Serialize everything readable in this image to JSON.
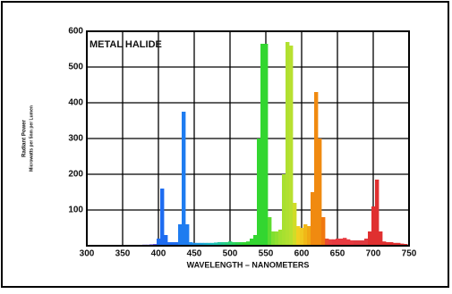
{
  "chart_data": {
    "type": "spectrum",
    "title": "METAL HALIDE",
    "x_label": "WAVELENGTH – NANOMETERS",
    "y_label": [
      "Radiant Power",
      "Microwatts per 5nm per Lumen"
    ],
    "xlim": [
      300,
      750
    ],
    "ylim": [
      0,
      600
    ],
    "xticks": [
      300,
      350,
      400,
      450,
      500,
      550,
      600,
      650,
      700,
      750
    ],
    "yticks": [
      100,
      200,
      300,
      400,
      500,
      600
    ],
    "grid": true,
    "x": [
      380,
      385,
      390,
      395,
      400,
      405,
      410,
      415,
      420,
      425,
      430,
      435,
      440,
      445,
      450,
      455,
      460,
      465,
      470,
      475,
      480,
      485,
      490,
      495,
      500,
      505,
      510,
      515,
      520,
      525,
      530,
      535,
      540,
      545,
      550,
      555,
      560,
      565,
      570,
      575,
      580,
      585,
      590,
      595,
      600,
      605,
      610,
      615,
      620,
      625,
      630,
      635,
      640,
      645,
      650,
      655,
      660,
      665,
      670,
      675,
      680,
      685,
      690,
      695,
      700,
      705,
      710,
      715,
      720,
      725,
      730,
      735,
      740,
      745
    ],
    "values": [
      3,
      3,
      4,
      5,
      20,
      160,
      30,
      10,
      10,
      10,
      60,
      375,
      60,
      10,
      8,
      8,
      8,
      8,
      8,
      8,
      9,
      10,
      10,
      10,
      12,
      10,
      10,
      10,
      10,
      12,
      20,
      30,
      300,
      565,
      565,
      80,
      40,
      40,
      45,
      200,
      570,
      560,
      120,
      55,
      50,
      60,
      55,
      150,
      430,
      300,
      80,
      20,
      18,
      18,
      20,
      20,
      22,
      18,
      15,
      15,
      15,
      15,
      20,
      40,
      110,
      185,
      40,
      12,
      10,
      10,
      8,
      8,
      6,
      5
    ],
    "colors": [
      "#6a5cf0",
      "#6a5cf0",
      "#6a5cf0",
      "#6a5cf0",
      "#1e6cf0",
      "#1e6cf0",
      "#1e6cf0",
      "#1e6cf0",
      "#1e6cf0",
      "#1e6cf0",
      "#1e7cf0",
      "#1e7cf0",
      "#1e7cf0",
      "#1e8cf0",
      "#1e90e8",
      "#1e9ae0",
      "#1ea4d8",
      "#1eaed0",
      "#1eb8c8",
      "#1ec0c0",
      "#20c4b0",
      "#22c8a0",
      "#24cc90",
      "#26d080",
      "#28d470",
      "#2ad460",
      "#2cd450",
      "#30d640",
      "#33d630",
      "#33d630",
      "#33d630",
      "#33d630",
      "#33d630",
      "#33d630",
      "#33d630",
      "#5cdc30",
      "#80e030",
      "#90e030",
      "#a0e030",
      "#a8e030",
      "#b0e030",
      "#b8e030",
      "#d0dc28",
      "#f0d020",
      "#f0c820",
      "#f0b818",
      "#f0a814",
      "#f08a10",
      "#f08a10",
      "#f08a10",
      "#f07810",
      "#e84a30",
      "#e84040",
      "#e83a40",
      "#e83a40",
      "#e83a40",
      "#e83a40",
      "#e83a40",
      "#e83a40",
      "#e03a40",
      "#e03a40",
      "#e03a40",
      "#e03a40",
      "#e03030",
      "#e03030",
      "#e03030",
      "#e03030",
      "#e03030",
      "#e03030",
      "#e03030",
      "#e03030",
      "#e03030",
      "#e03030",
      "#e03030"
    ]
  }
}
